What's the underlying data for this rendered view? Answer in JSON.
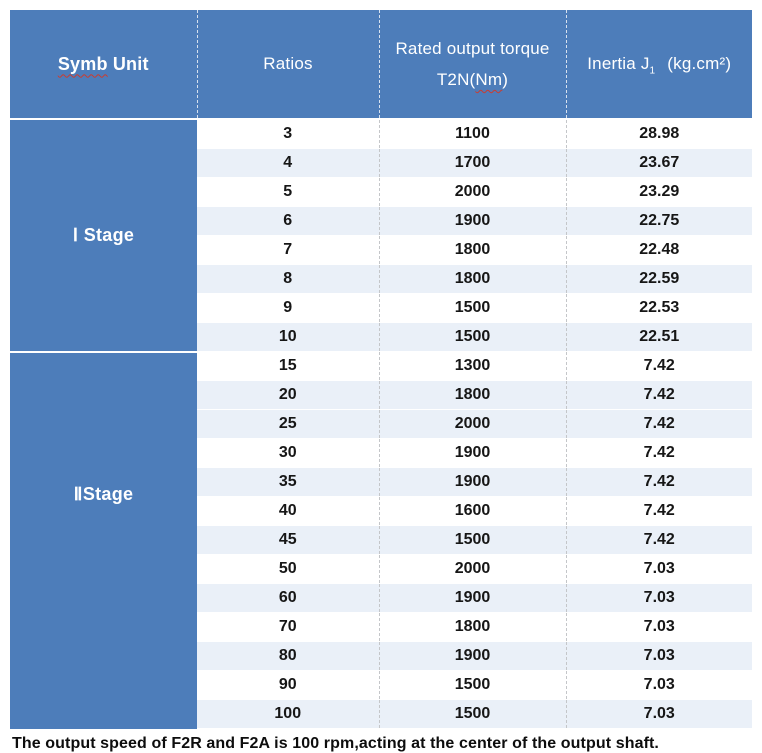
{
  "colors": {
    "header_blue": "#4d7dba",
    "shaded_row": "#eaf0f8",
    "header_text": "#ffffff",
    "body_text": "#161616",
    "spellcheck_red": "#cc3b2e"
  },
  "table": {
    "header": {
      "symb_unit": {
        "word1": "Symb",
        "word2": " Unit"
      },
      "ratios": "Ratios",
      "torque_line1": "Rated output torque",
      "torque_prefix": "T2N(",
      "torque_nm": "Nm",
      "torque_close": ")",
      "inertia_prefix": "Inertia J",
      "inertia_sub": "1",
      "inertia_unit": "(kg.cm²)"
    },
    "sections": [
      {
        "label": "Ⅰ Stage",
        "rows": [
          {
            "ratio": "3",
            "torque": "1100",
            "inertia": "28.98",
            "shaded": false
          },
          {
            "ratio": "4",
            "torque": "1700",
            "inertia": "23.67",
            "shaded": true
          },
          {
            "ratio": "5",
            "torque": "2000",
            "inertia": "23.29",
            "shaded": false
          },
          {
            "ratio": "6",
            "torque": "1900",
            "inertia": "22.75",
            "shaded": true
          },
          {
            "ratio": "7",
            "torque": "1800",
            "inertia": "22.48",
            "shaded": false
          },
          {
            "ratio": "8",
            "torque": "1800",
            "inertia": "22.59",
            "shaded": true
          },
          {
            "ratio": "9",
            "torque": "1500",
            "inertia": "22.53",
            "shaded": false
          },
          {
            "ratio": "10",
            "torque": "1500",
            "inertia": "22.51",
            "shaded": true
          }
        ]
      },
      {
        "label": "ⅡStage",
        "rows": [
          {
            "ratio": "15",
            "torque": "1300",
            "inertia": "7.42",
            "shaded": false
          },
          {
            "ratio": "20",
            "torque": "1800",
            "inertia": "7.42",
            "shaded": true
          },
          {
            "ratio": "25",
            "torque": "2000",
            "inertia": "7.42",
            "shaded": true
          },
          {
            "ratio": "30",
            "torque": "1900",
            "inertia": "7.42",
            "shaded": false
          },
          {
            "ratio": "35",
            "torque": "1900",
            "inertia": "7.42",
            "shaded": true
          },
          {
            "ratio": "40",
            "torque": "1600",
            "inertia": "7.42",
            "shaded": false
          },
          {
            "ratio": "45",
            "torque": "1500",
            "inertia": "7.42",
            "shaded": true
          },
          {
            "ratio": "50",
            "torque": "2000",
            "inertia": "7.03",
            "shaded": false
          },
          {
            "ratio": "60",
            "torque": "1900",
            "inertia": "7.03",
            "shaded": true
          },
          {
            "ratio": "70",
            "torque": "1800",
            "inertia": "7.03",
            "shaded": false
          },
          {
            "ratio": "80",
            "torque": "1900",
            "inertia": "7.03",
            "shaded": true
          },
          {
            "ratio": "90",
            "torque": "1500",
            "inertia": "7.03",
            "shaded": false
          },
          {
            "ratio": "100",
            "torque": "1500",
            "inertia": "7.03",
            "shaded": true
          }
        ]
      }
    ]
  },
  "footer": {
    "note": "The output speed of F2R and F2A is 100 rpm,acting at the center of the output shaft."
  }
}
